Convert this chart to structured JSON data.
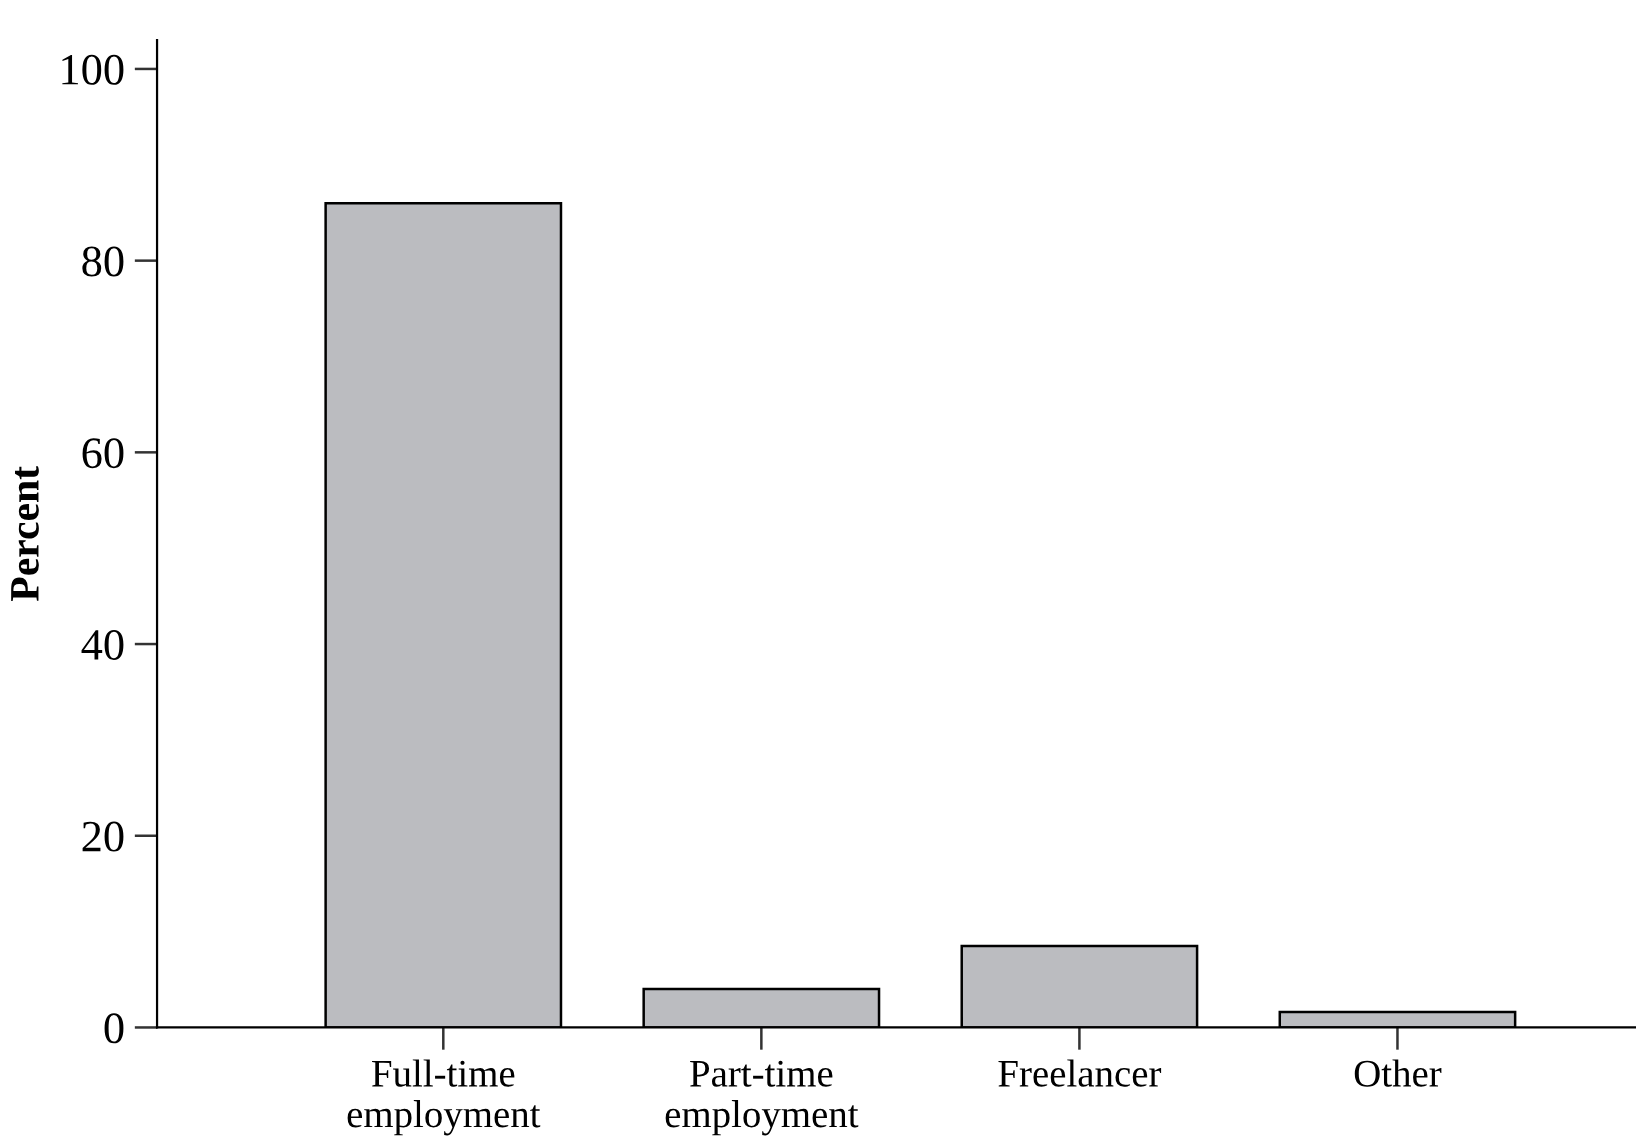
{
  "chart_data": {
    "type": "bar",
    "ylabel": "Percent",
    "categories": [
      "Full-time\nemployment",
      "Part-time\nemployment",
      "Freelancer",
      "Other"
    ],
    "values": [
      86,
      4.0,
      8.5,
      1.6
    ],
    "color": "#bbbcc0",
    "ylim": [
      0,
      103
    ],
    "yticks": [
      0,
      20,
      40,
      60,
      80,
      100
    ],
    "grid": false,
    "legend": false
  }
}
